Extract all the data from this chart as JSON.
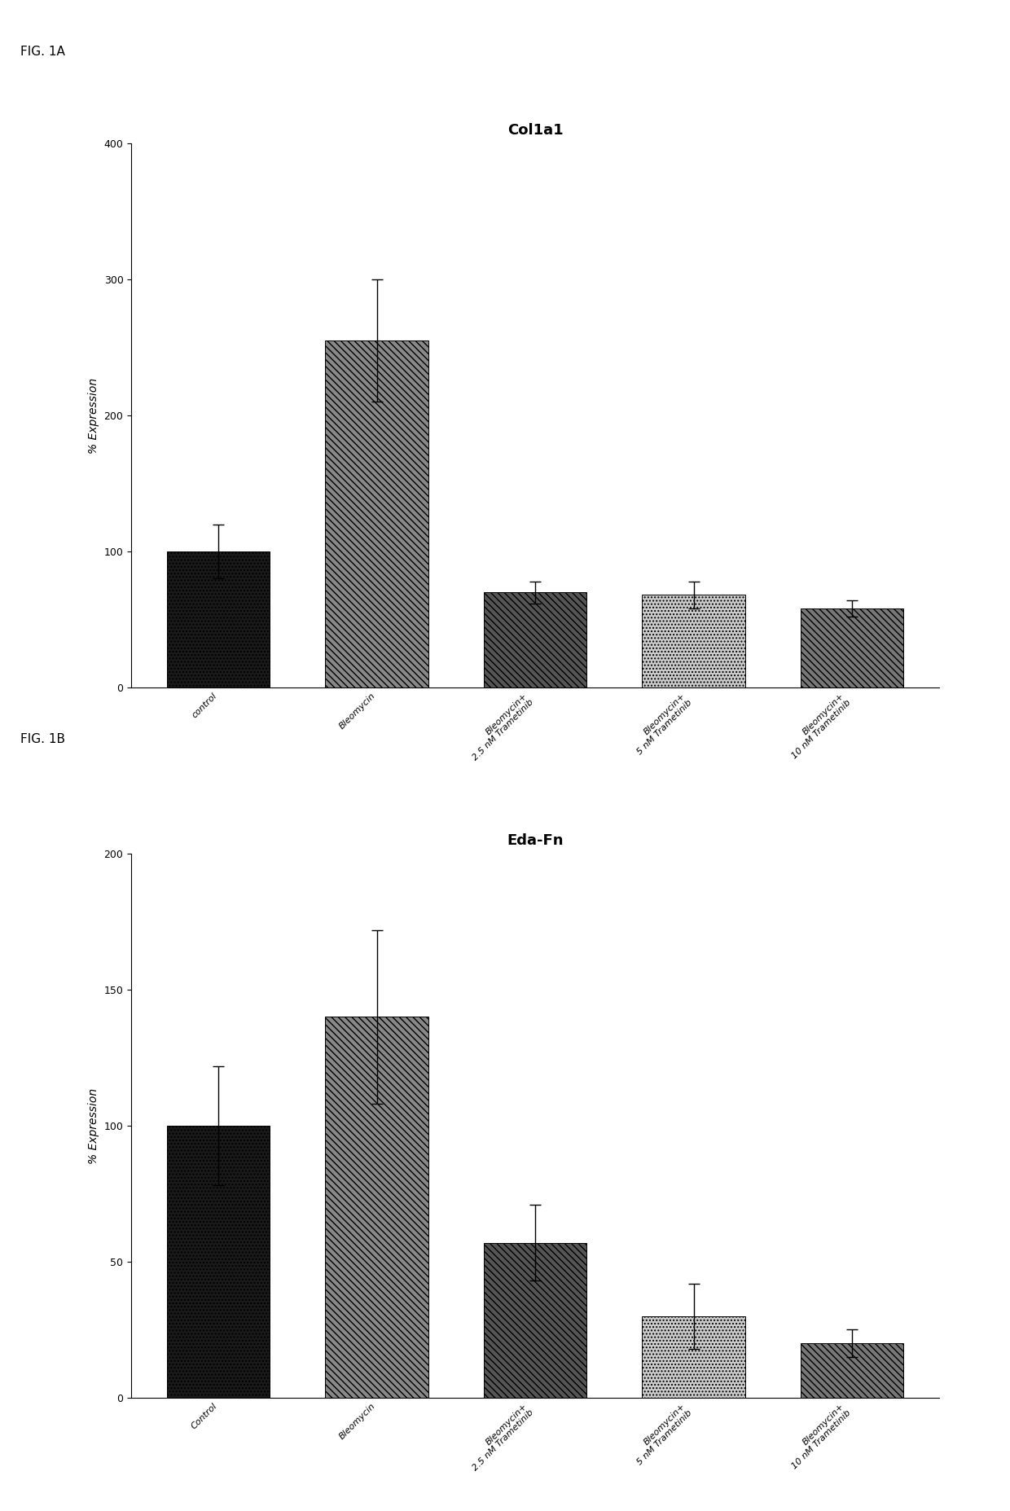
{
  "fig1a": {
    "title": "Col1a1",
    "ylabel": "% Expression",
    "ylim": [
      0,
      400
    ],
    "yticks": [
      0,
      100,
      200,
      300,
      400
    ],
    "values": [
      100,
      255,
      70,
      68,
      58
    ],
    "errors": [
      20,
      45,
      8,
      10,
      6
    ],
    "colors": [
      "#1a1a1a",
      "#888888",
      "#555555",
      "#cccccc",
      "#777777"
    ],
    "hatches": [
      "....",
      "\\\\\\\\",
      "\\\\\\\\",
      "....",
      "\\\\\\\\"
    ],
    "categories": [
      "control",
      "Bleomycin",
      "Bleomycin+\n2.5 nM Trametinib",
      "Bleomycin+\n5 nM Trametinib",
      "Bleomycin+\n10 nM Trametinib"
    ]
  },
  "fig1b": {
    "title": "Eda-Fn",
    "ylabel": "% Expression",
    "ylim": [
      0,
      200
    ],
    "yticks": [
      0,
      50,
      100,
      150,
      200
    ],
    "values": [
      100,
      140,
      57,
      30,
      20
    ],
    "errors": [
      22,
      32,
      14,
      12,
      5
    ],
    "colors": [
      "#1a1a1a",
      "#888888",
      "#555555",
      "#cccccc",
      "#777777"
    ],
    "hatches": [
      "....",
      "\\\\\\\\",
      "\\\\\\\\",
      "....",
      "\\\\\\\\"
    ],
    "categories": [
      "Control",
      "Bleomycin",
      "Bleomycin+\n2.5 nM Trametinib",
      "Bleomycin+\n5 nM Trametinib",
      "Bleomycin+\n10 nM Trametinib"
    ]
  },
  "fig_label_a": "FIG. 1A",
  "fig_label_b": "FIG. 1B",
  "background_color": "#ffffff",
  "bar_width": 0.65,
  "title_fontsize": 13,
  "label_fontsize": 10,
  "tick_fontsize": 9,
  "xticklabel_fontsize": 8
}
